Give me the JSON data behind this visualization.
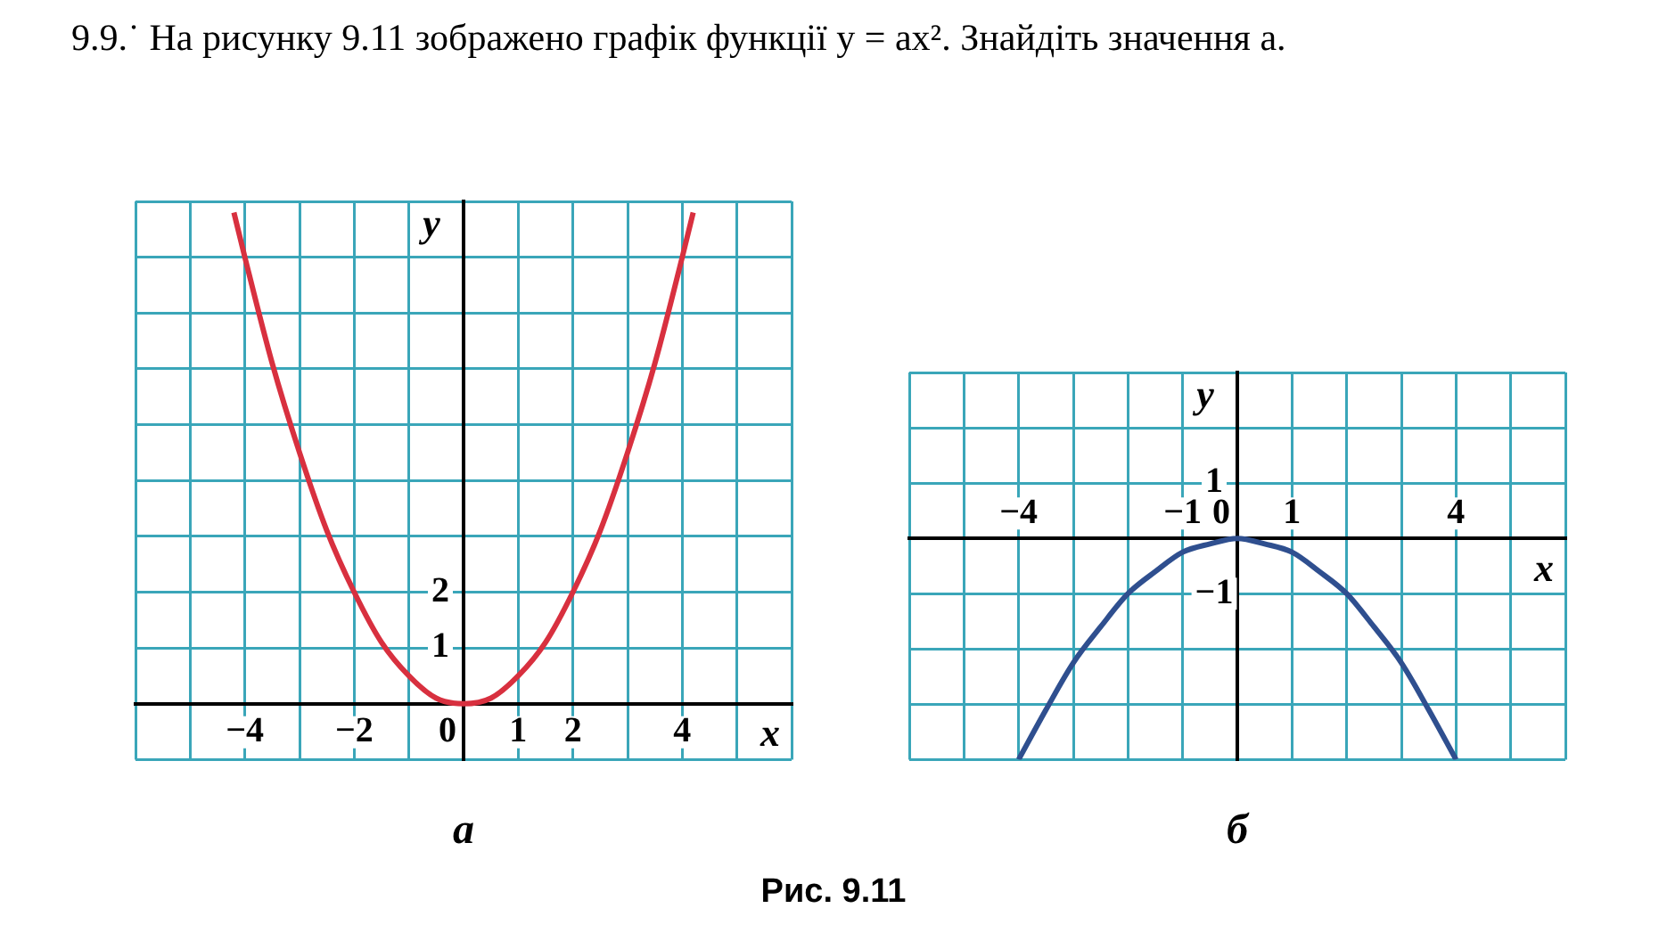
{
  "chart_data": [
    {
      "type": "line",
      "title": "а",
      "xlabel": "x",
      "ylabel": "y",
      "xlim": [
        -6,
        6
      ],
      "ylim": [
        -1,
        9
      ],
      "grid": true,
      "marker": "none",
      "annotations": [
        "9.9.˙ На рисунку 9.11 зображено графік функції y = ax². Знайдіть значення a."
      ],
      "xticks": [
        {
          "value": -6,
          "label": null
        },
        {
          "value": -5,
          "label": null
        },
        {
          "value": -4,
          "label": "−4"
        },
        {
          "value": -3,
          "label": null
        },
        {
          "value": -2,
          "label": "−2"
        },
        {
          "value": -1,
          "label": null
        },
        0,
        1,
        2,
        {
          "value": 3,
          "label": null
        },
        4,
        {
          "value": 5,
          "label": null
        },
        {
          "value": 6,
          "label": null
        }
      ],
      "yticks": [
        {
          "value": -1,
          "label": null
        },
        {
          "value": 0,
          "label": null
        },
        {
          "value": 1,
          "label": "1"
        },
        {
          "value": 2,
          "label": "2"
        },
        {
          "value": 3,
          "label": null
        },
        {
          "value": 4,
          "label": null
        },
        {
          "value": 5,
          "label": null
        },
        {
          "value": 6,
          "label": null
        },
        {
          "value": 7,
          "label": null
        },
        {
          "value": 8,
          "label": null
        },
        {
          "value": 9,
          "label": null
        }
      ],
      "series": [
        {
          "color": "#d8303f",
          "x": [
            -4.2,
            -4,
            -3.5,
            -3,
            -2.5,
            -2,
            -1.5,
            -1,
            -0.5,
            0,
            0.5,
            1,
            1.5,
            2,
            2.5,
            3,
            3.5,
            4,
            4.2
          ],
          "values": [
            8.8,
            8,
            6.1,
            4.5,
            3.1,
            2,
            1.1,
            0.5,
            0.1,
            0,
            0.1,
            0.5,
            1.1,
            2,
            3.1,
            4.5,
            6.1,
            8,
            8.8
          ]
        }
      ]
    },
    {
      "type": "line",
      "title": "б",
      "xlabel": "x",
      "ylabel": "y",
      "xlim": [
        -6,
        6
      ],
      "ylim": [
        -4,
        3
      ],
      "grid": true,
      "marker": "none",
      "annotations": [
        "Рис. 9.11"
      ],
      "xticks": [
        {
          "value": -6,
          "label": null
        },
        {
          "value": -5,
          "label": null
        },
        {
          "value": -4,
          "label": "−4"
        },
        {
          "value": -3,
          "label": null
        },
        {
          "value": -2,
          "label": null
        },
        {
          "value": -1,
          "label": "−1"
        },
        0,
        1,
        {
          "value": 2,
          "label": null
        },
        {
          "value": 3,
          "label": null
        },
        4,
        {
          "value": 5,
          "label": null
        },
        {
          "value": 6,
          "label": null
        }
      ],
      "yticks": [
        {
          "value": -4,
          "label": null
        },
        {
          "value": -3,
          "label": null
        },
        {
          "value": -2,
          "label": null
        },
        {
          "value": -1,
          "label": "−1"
        },
        {
          "value": 0,
          "label": null
        },
        {
          "value": 1,
          "label": "1"
        },
        {
          "value": 2,
          "label": null
        },
        {
          "value": 3,
          "label": null
        }
      ],
      "series": [
        {
          "color": "#2f4f8f",
          "x": [
            -4,
            -3.5,
            -3,
            -2.5,
            -2,
            -1.5,
            -1,
            -0.5,
            0,
            0.5,
            1,
            1.5,
            2,
            2.5,
            3,
            3.5,
            4
          ],
          "values": [
            -4,
            -3.1,
            -2.25,
            -1.6,
            -1,
            -0.6,
            -0.25,
            -0.1,
            0,
            -0.1,
            -0.25,
            -0.6,
            -1,
            -1.6,
            -2.25,
            -3.1,
            -4
          ]
        }
      ]
    }
  ]
}
